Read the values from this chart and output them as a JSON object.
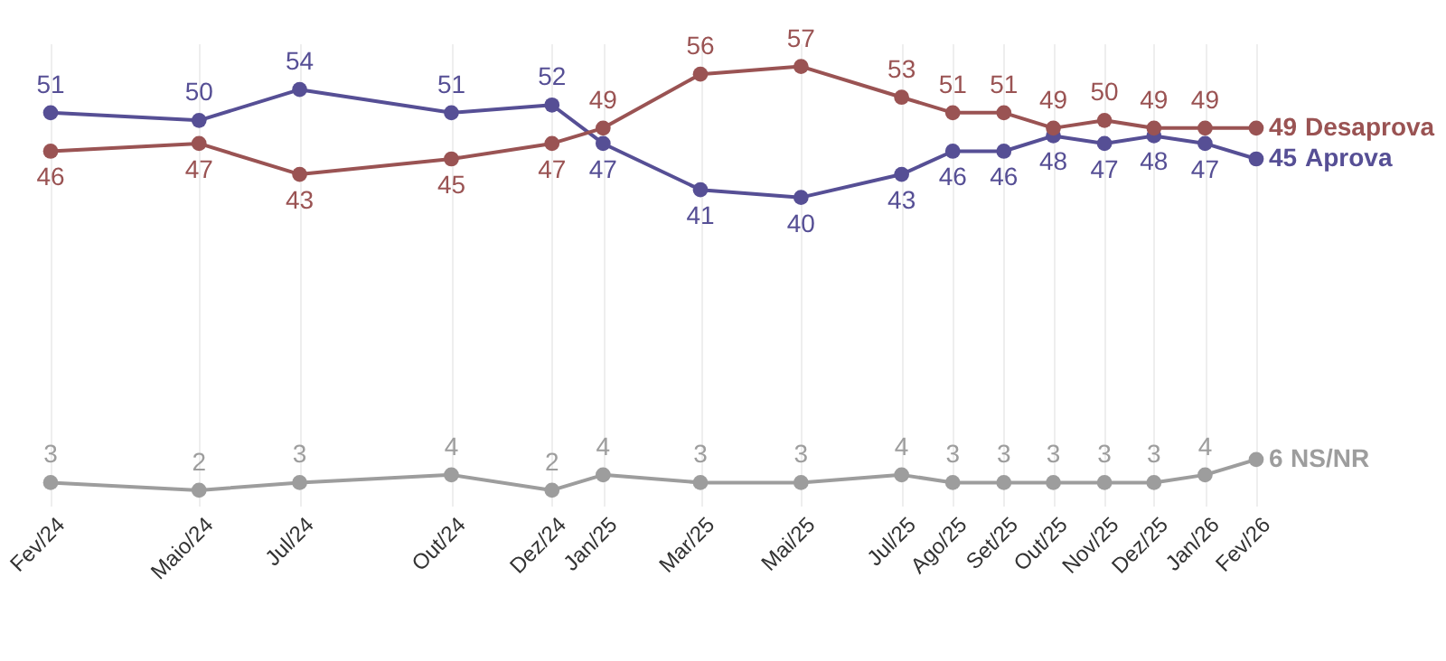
{
  "chart_data": {
    "type": "line",
    "x": [
      "2024-02",
      "2024-05",
      "2024-07",
      "2024-10",
      "2024-12",
      "2025-01",
      "2025-03",
      "2025-05",
      "2025-07",
      "2025-08",
      "2025-09",
      "2025-10",
      "2025-11",
      "2025-12",
      "2026-01",
      "2026-02"
    ],
    "xlim": [
      "2024-02",
      "2026-02"
    ],
    "xticks": [
      {
        "value": "2024-02",
        "label": "Fev/24"
      },
      {
        "value": "2024-05",
        "label": "Maio/24"
      },
      {
        "value": "2024-07",
        "label": "Jul/24"
      },
      {
        "value": "2024-10",
        "label": "Out/24"
      },
      {
        "value": "2024-12",
        "label": "Dez/24"
      },
      {
        "value": "2025-01",
        "label": "Jan/25"
      },
      {
        "value": "2025-03",
        "label": "Mar/25"
      },
      {
        "value": "2025-05",
        "label": "Mai/25"
      },
      {
        "value": "2025-07",
        "label": "Jul/25"
      },
      {
        "value": "2025-08",
        "label": "Ago/25"
      },
      {
        "value": "2025-09",
        "label": "Set/25"
      },
      {
        "value": "2025-10",
        "label": "Out/25"
      },
      {
        "value": "2025-11",
        "label": "Nov/25"
      },
      {
        "value": "2025-12",
        "label": "Dez/25"
      },
      {
        "value": "2026-01",
        "label": "Jan/26"
      },
      {
        "value": "2026-02",
        "label": "Fev/26"
      }
    ],
    "ylim": [
      0,
      60
    ],
    "tick_labels": "x",
    "grid": "x",
    "marker": "circle",
    "line_style": "solid",
    "data_labels": true,
    "series": [
      {
        "name": "Aprova",
        "color": "#564f95",
        "values": [
          51,
          50,
          54,
          51,
          52,
          47,
          41,
          40,
          43,
          46,
          46,
          48,
          47,
          48,
          47,
          45
        ]
      },
      {
        "name": "Desaprova",
        "color": "#9a5353",
        "values": [
          46,
          47,
          43,
          45,
          47,
          49,
          56,
          57,
          53,
          51,
          51,
          49,
          50,
          49,
          49,
          49
        ]
      },
      {
        "name": "NS/NR",
        "color": "#9d9d9d",
        "values": [
          3,
          2,
          3,
          4,
          2,
          4,
          3,
          3,
          4,
          3,
          3,
          3,
          3,
          3,
          4,
          6
        ]
      }
    ]
  }
}
